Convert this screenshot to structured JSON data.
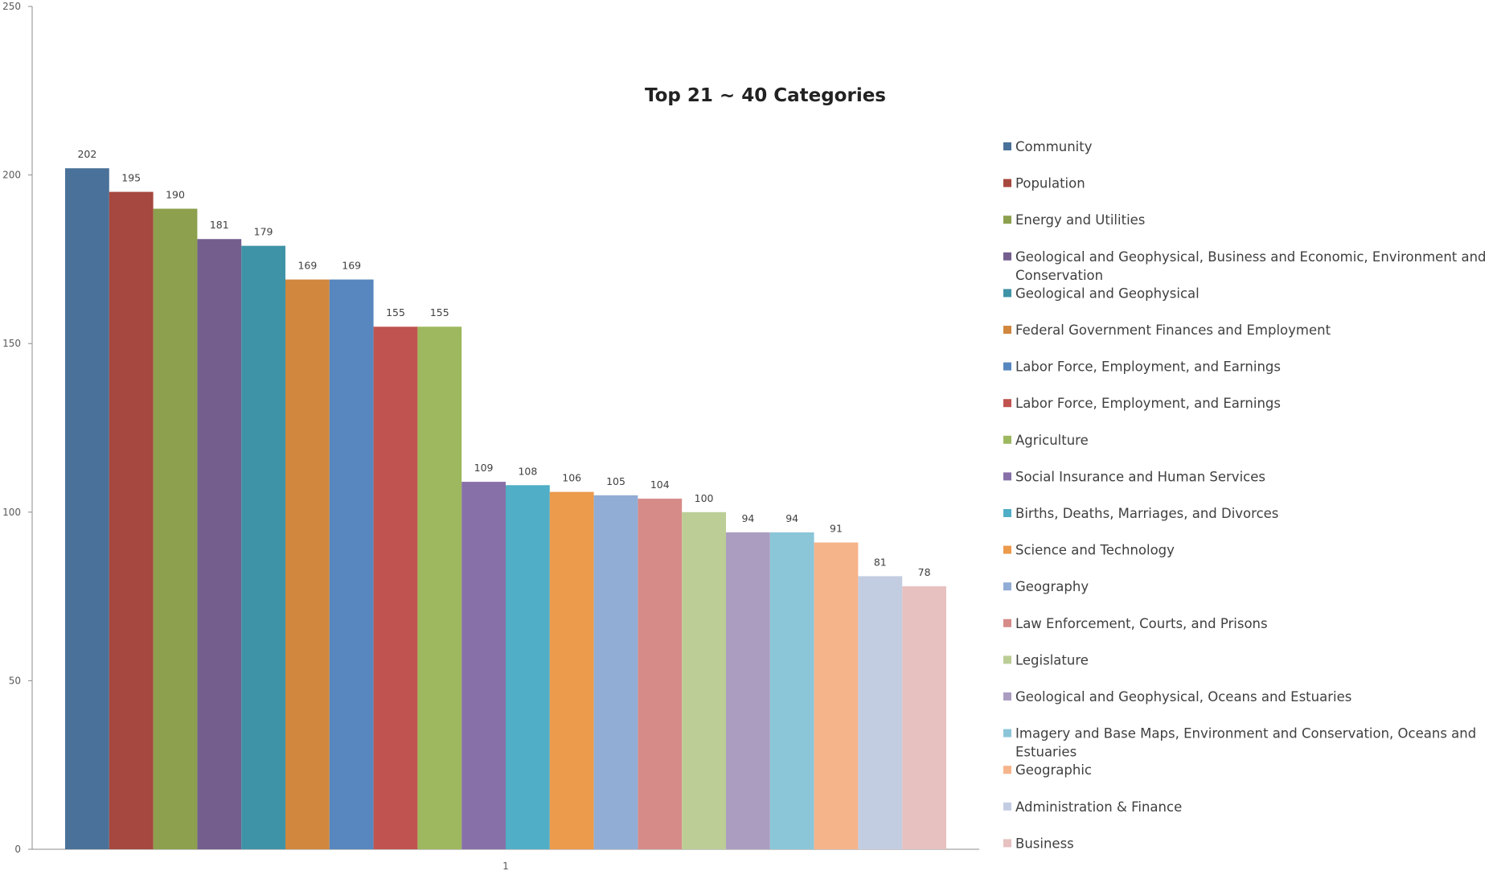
{
  "chart_data": {
    "type": "bar",
    "title": "Top 21 ~ 40 Categories",
    "xlabel": "",
    "ylabel": "",
    "categories": [
      "1"
    ],
    "ylim": [
      0,
      250
    ],
    "yticks": [
      "0",
      "50",
      "100",
      "150",
      "200",
      "250"
    ],
    "grid": false,
    "legend_position": "right",
    "series": [
      {
        "name": "Community",
        "values": [
          202
        ],
        "color": "#4A7199"
      },
      {
        "name": "Population",
        "values": [
          195
        ],
        "color": "#A6483F"
      },
      {
        "name": "Energy and Utilities",
        "values": [
          190
        ],
        "color": "#8CA04D"
      },
      {
        "name": "Geological and Geophysical, Business and Economic, Environment and Conservation",
        "values": [
          181
        ],
        "color": "#735E8E"
      },
      {
        "name": "Geological and Geophysical",
        "values": [
          179
        ],
        "color": "#3F93A6"
      },
      {
        "name": "Federal Government Finances and Employment",
        "values": [
          169
        ],
        "color": "#D1873D"
      },
      {
        "name": "Labor Force, Employment, and Earnings",
        "values": [
          169
        ],
        "color": "#5787BE"
      },
      {
        "name": "Labor Force, Employment, and Earnings",
        "values": [
          155
        ],
        "color": "#C0534F"
      },
      {
        "name": "Agriculture",
        "values": [
          155
        ],
        "color": "#9DB85E"
      },
      {
        "name": "Social Insurance and Human Services",
        "values": [
          109
        ],
        "color": "#8770A8"
      },
      {
        "name": "Births, Deaths, Marriages, and Divorces",
        "values": [
          108
        ],
        "color": "#50AEC6"
      },
      {
        "name": "Science and Technology",
        "values": [
          106
        ],
        "color": "#EC9A4C"
      },
      {
        "name": "Geography",
        "values": [
          105
        ],
        "color": "#92ADD5"
      },
      {
        "name": "Law Enforcement, Courts, and Prisons",
        "values": [
          104
        ],
        "color": "#D68B88"
      },
      {
        "name": "Legislature",
        "values": [
          100
        ],
        "color": "#BCCD96"
      },
      {
        "name": "Geological and Geophysical, Oceans and Estuaries",
        "values": [
          94
        ],
        "color": "#AB9DC0"
      },
      {
        "name": "Imagery and Base Maps, Environment and Conservation, Oceans and Estuaries",
        "values": [
          94
        ],
        "color": "#8BC6D8"
      },
      {
        "name": "Geographic",
        "values": [
          91
        ],
        "color": "#F6B48A"
      },
      {
        "name": "Administration & Finance",
        "values": [
          81
        ],
        "color": "#C3CDE2"
      },
      {
        "name": "Business",
        "values": [
          78
        ],
        "color": "#E6C1C0"
      }
    ]
  }
}
